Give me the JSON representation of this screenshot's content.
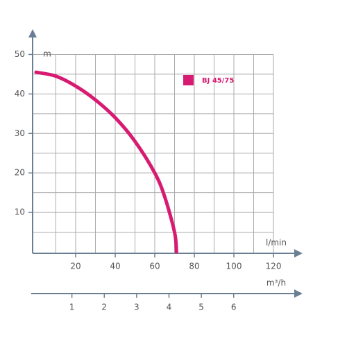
{
  "chart_data": {
    "type": "line",
    "y_label": "m",
    "x_label": "l/min",
    "x2_label": "m³/h",
    "series": [
      {
        "name": "BJ 45/75",
        "color": "#d81b72",
        "x": [
          0,
          10,
          20,
          30,
          40,
          50,
          60,
          65,
          70,
          71
        ],
        "values": [
          45.5,
          44.5,
          42,
          38.5,
          34,
          28,
          20,
          14,
          5,
          0
        ]
      }
    ],
    "xlim": [
      0,
      130
    ],
    "ylim": [
      0,
      55
    ],
    "x2lim": [
      0,
      8
    ],
    "xticks": [
      20,
      40,
      60,
      80,
      100,
      120
    ],
    "yticks": [
      10,
      20,
      30,
      40,
      50
    ],
    "x2ticks": [
      1,
      2,
      3,
      4,
      5,
      6
    ],
    "xgrid": [
      10,
      20,
      30,
      40,
      50,
      60,
      70,
      80,
      90,
      100,
      110,
      120
    ],
    "ygrid": [
      5,
      10,
      15,
      20,
      25,
      30,
      35,
      40,
      45,
      50
    ],
    "grid": true
  }
}
